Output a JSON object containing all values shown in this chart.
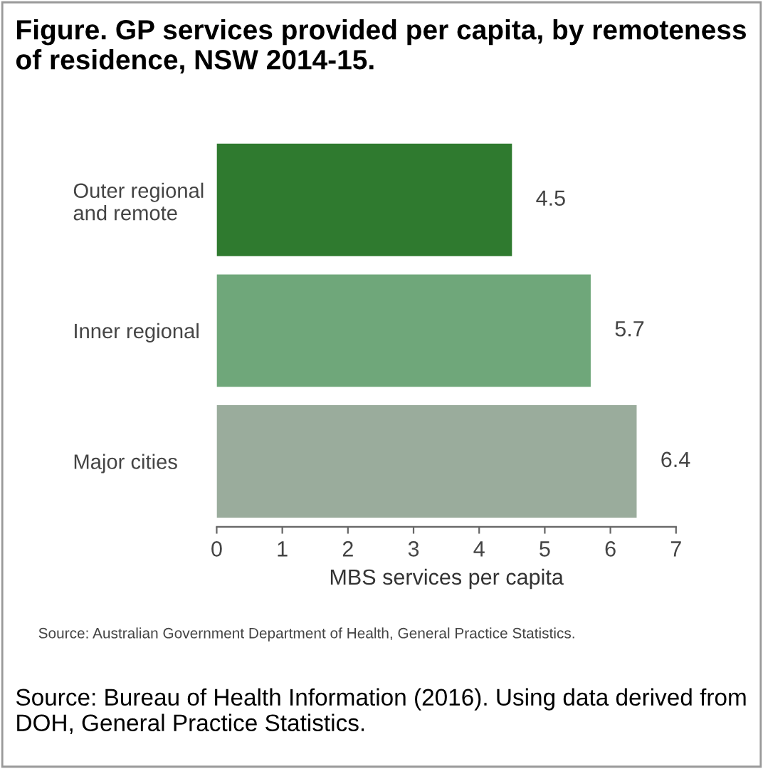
{
  "chart_data": {
    "type": "bar",
    "orientation": "horizontal",
    "title": "Figure. GP services provided per capita, by remoteness of residence, NSW 2014-15.",
    "categories": [
      "Outer regional\nand remote",
      "Inner regional",
      "Major cities"
    ],
    "values": [
      4.5,
      5.7,
      6.4
    ],
    "colors": [
      "#2f7a2f",
      "#6fa77a",
      "#9aac9c"
    ],
    "data_labels": true,
    "xlabel": "MBS services per capita",
    "xlim": [
      0,
      7
    ],
    "xticks": [
      0,
      1,
      2,
      3,
      4,
      5,
      6,
      7
    ],
    "grid": false,
    "annotations": [
      "Source: Australian Government Department of Health, General Practice Statistics.",
      "Source: Bureau of Health Information (2016). Using data derived from DOH, General Practice Statistics."
    ]
  }
}
